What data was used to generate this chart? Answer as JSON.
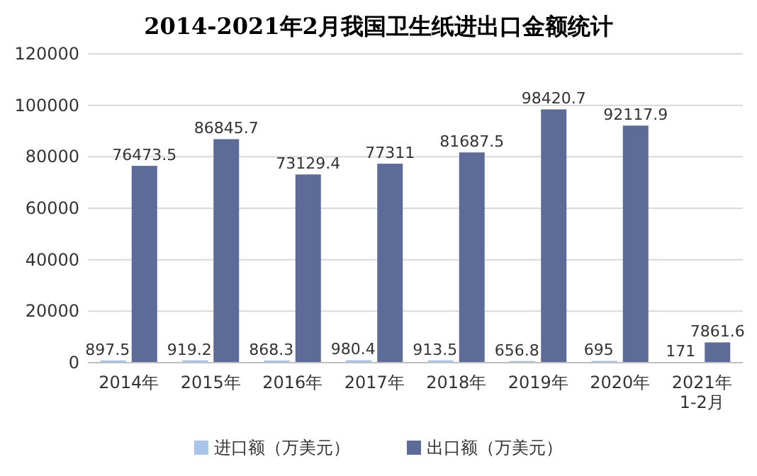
{
  "chart_data": {
    "type": "bar",
    "title": "2014-2021年2月我国卫生纸进出口金额统计",
    "categories": [
      "2014年",
      "2015年",
      "2016年",
      "2017年",
      "2018年",
      "2019年",
      "2020年",
      "2021年\n1-2月"
    ],
    "series": [
      {
        "name": "进口额（万美元）",
        "color": "#a9c6e8",
        "values": [
          897.5,
          919.2,
          868.3,
          980.4,
          913.5,
          656.8,
          695,
          171
        ]
      },
      {
        "name": "出口额（万美元）",
        "color": "#5d6b98",
        "values": [
          76473.5,
          86845.7,
          73129.4,
          77311,
          81687.5,
          98420.7,
          92117.9,
          7861.6
        ]
      }
    ],
    "ylim": [
      0,
      120000
    ],
    "yticks": [
      0,
      20000,
      40000,
      60000,
      80000,
      100000,
      120000
    ],
    "grid": "y",
    "legend": "bottom",
    "data_labels": true
  }
}
